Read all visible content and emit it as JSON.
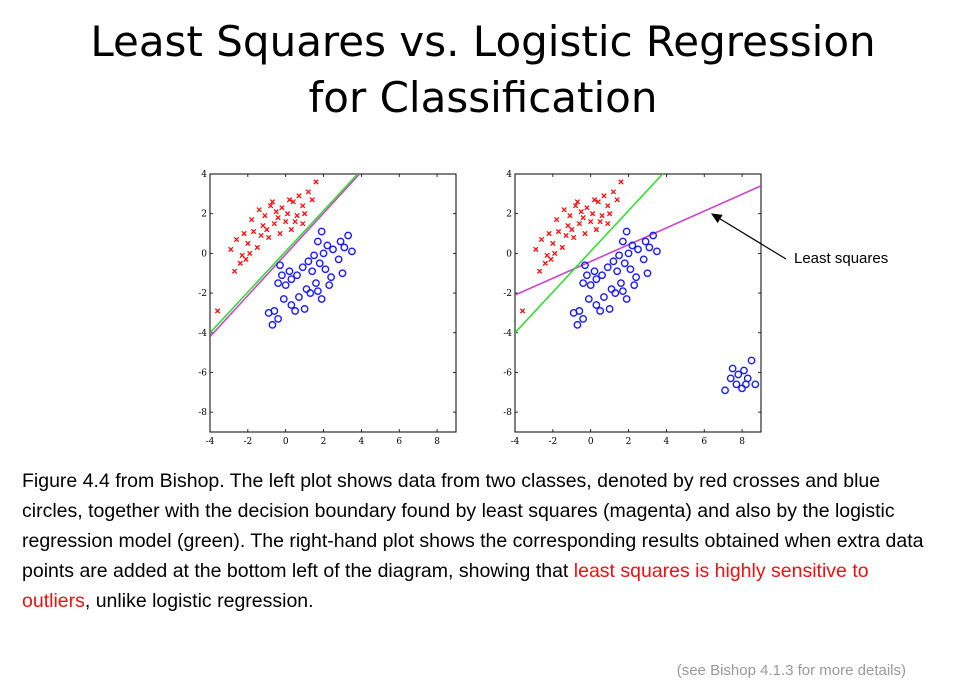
{
  "slide": {
    "title_line1": "Least Squares vs. Logistic Regression",
    "title_line2": "for Classification",
    "callout": "Least squares",
    "caption_part1": "Figure 4.4 from Bishop. The left plot shows data from two classes, denoted by red crosses and blue circles, together with the decision boundary found by least squares (magenta) and also by the logistic regression model (green). The right-hand plot shows the corresponding results obtained when extra data points are added at the bottom left of the diagram, showing that ",
    "caption_highlight": "least squares is highly sensitive to outliers",
    "caption_part2": ", unlike logistic regression.",
    "footnote": "(see Bishop 4.1.3 for more details)"
  },
  "colors": {
    "cross": "#ee1111",
    "circle": "#1a1aff",
    "least_squares": "#cc44cc",
    "logistic": "#33dd33",
    "highlight": "#ee1111"
  },
  "chart_data": [
    {
      "type": "scatter",
      "xlim": [
        -4,
        9
      ],
      "ylim": [
        -9,
        4
      ],
      "xticks": [
        -4,
        -2,
        0,
        2,
        4,
        6,
        8
      ],
      "yticks": [
        4,
        2,
        0,
        -2,
        -4,
        -6,
        -8
      ],
      "series": [
        {
          "marker": "cross",
          "points": [
            [
              -1.4,
              2.2
            ],
            [
              -1.1,
              1.9
            ],
            [
              -0.8,
              2.4
            ],
            [
              -0.5,
              2.1
            ],
            [
              -0.2,
              2.3
            ],
            [
              0.1,
              2.0
            ],
            [
              0.4,
              2.6
            ],
            [
              0.7,
              2.9
            ],
            [
              0.9,
              2.4
            ],
            [
              1.2,
              3.1
            ],
            [
              1.6,
              3.6
            ],
            [
              -2.9,
              0.2
            ],
            [
              -2.6,
              0.7
            ],
            [
              -2.3,
              -0.1
            ],
            [
              -2.0,
              0.5
            ],
            [
              -1.7,
              1.1
            ],
            [
              -1.5,
              0.3
            ],
            [
              -1.2,
              1.4
            ],
            [
              -0.9,
              0.8
            ],
            [
              -0.6,
              1.5
            ],
            [
              -0.3,
              1.0
            ],
            [
              0.0,
              1.6
            ],
            [
              0.3,
              1.2
            ],
            [
              0.6,
              1.9
            ],
            [
              0.9,
              1.5
            ],
            [
              -1.8,
              1.7
            ],
            [
              -1.3,
              0.9
            ],
            [
              -2.7,
              -0.9
            ],
            [
              -2.4,
              -0.5
            ],
            [
              -2.1,
              -0.3
            ],
            [
              -3.6,
              -2.9
            ],
            [
              -0.4,
              1.8
            ],
            [
              0.2,
              2.7
            ],
            [
              1.0,
              2.0
            ],
            [
              -1.0,
              1.2
            ],
            [
              -2.2,
              1.0
            ],
            [
              0.5,
              1.6
            ],
            [
              1.4,
              2.7
            ],
            [
              -0.7,
              2.6
            ],
            [
              -1.9,
              0.0
            ]
          ]
        },
        {
          "marker": "circle",
          "points": [
            [
              1.9,
              1.1
            ],
            [
              1.7,
              0.6
            ],
            [
              2.2,
              0.4
            ],
            [
              2.0,
              0.0
            ],
            [
              2.5,
              0.2
            ],
            [
              2.9,
              0.6
            ],
            [
              3.3,
              0.9
            ],
            [
              3.1,
              0.3
            ],
            [
              1.5,
              -0.1
            ],
            [
              1.2,
              -0.4
            ],
            [
              0.9,
              -0.7
            ],
            [
              1.4,
              -0.9
            ],
            [
              1.8,
              -0.5
            ],
            [
              2.1,
              -0.8
            ],
            [
              2.4,
              -1.2
            ],
            [
              1.6,
              -1.5
            ],
            [
              1.1,
              -1.8
            ],
            [
              0.6,
              -1.1
            ],
            [
              0.3,
              -1.3
            ],
            [
              0.0,
              -1.6
            ],
            [
              -0.2,
              -1.1
            ],
            [
              -0.4,
              -1.5
            ],
            [
              -0.1,
              -2.3
            ],
            [
              0.3,
              -2.6
            ],
            [
              0.7,
              -2.2
            ],
            [
              1.0,
              -2.8
            ],
            [
              -0.6,
              -2.9
            ],
            [
              -0.9,
              -3.0
            ],
            [
              -0.4,
              -3.3
            ],
            [
              -0.7,
              -3.6
            ],
            [
              1.3,
              -2.0
            ],
            [
              1.7,
              -1.9
            ],
            [
              2.8,
              -0.3
            ],
            [
              3.5,
              0.1
            ],
            [
              -0.3,
              -0.6
            ],
            [
              0.2,
              -0.9
            ],
            [
              1.9,
              -2.3
            ],
            [
              0.5,
              -2.9
            ],
            [
              2.3,
              -1.6
            ],
            [
              3.0,
              -1.0
            ]
          ]
        }
      ],
      "lines": [
        {
          "name": "least squares",
          "color_key": "least_squares",
          "from": [
            -4,
            -4.2
          ],
          "to": [
            3.9,
            4
          ]
        },
        {
          "name": "logistic regression",
          "color_key": "logistic",
          "from": [
            -4,
            -4.0
          ],
          "to": [
            3.8,
            4
          ]
        }
      ]
    },
    {
      "type": "scatter",
      "xlim": [
        -4,
        9
      ],
      "ylim": [
        -9,
        4
      ],
      "xticks": [
        -4,
        -2,
        0,
        2,
        4,
        6,
        8
      ],
      "yticks": [
        4,
        2,
        0,
        -2,
        -4,
        -6,
        -8
      ],
      "series": [
        {
          "marker": "cross",
          "points": [
            [
              -1.4,
              2.2
            ],
            [
              -1.1,
              1.9
            ],
            [
              -0.8,
              2.4
            ],
            [
              -0.5,
              2.1
            ],
            [
              -0.2,
              2.3
            ],
            [
              0.1,
              2.0
            ],
            [
              0.4,
              2.6
            ],
            [
              0.7,
              2.9
            ],
            [
              0.9,
              2.4
            ],
            [
              1.2,
              3.1
            ],
            [
              1.6,
              3.6
            ],
            [
              -2.9,
              0.2
            ],
            [
              -2.6,
              0.7
            ],
            [
              -2.3,
              -0.1
            ],
            [
              -2.0,
              0.5
            ],
            [
              -1.7,
              1.1
            ],
            [
              -1.5,
              0.3
            ],
            [
              -1.2,
              1.4
            ],
            [
              -0.9,
              0.8
            ],
            [
              -0.6,
              1.5
            ],
            [
              -0.3,
              1.0
            ],
            [
              0.0,
              1.6
            ],
            [
              0.3,
              1.2
            ],
            [
              0.6,
              1.9
            ],
            [
              0.9,
              1.5
            ],
            [
              -1.8,
              1.7
            ],
            [
              -1.3,
              0.9
            ],
            [
              -2.7,
              -0.9
            ],
            [
              -2.4,
              -0.5
            ],
            [
              -2.1,
              -0.3
            ],
            [
              -3.6,
              -2.9
            ],
            [
              -0.4,
              1.8
            ],
            [
              0.2,
              2.7
            ],
            [
              1.0,
              2.0
            ],
            [
              -1.0,
              1.2
            ],
            [
              -2.2,
              1.0
            ],
            [
              0.5,
              1.6
            ],
            [
              1.4,
              2.7
            ],
            [
              -0.7,
              2.6
            ],
            [
              -1.9,
              0.0
            ]
          ]
        },
        {
          "marker": "circle",
          "points": [
            [
              1.9,
              1.1
            ],
            [
              1.7,
              0.6
            ],
            [
              2.2,
              0.4
            ],
            [
              2.0,
              0.0
            ],
            [
              2.5,
              0.2
            ],
            [
              2.9,
              0.6
            ],
            [
              3.3,
              0.9
            ],
            [
              3.1,
              0.3
            ],
            [
              1.5,
              -0.1
            ],
            [
              1.2,
              -0.4
            ],
            [
              0.9,
              -0.7
            ],
            [
              1.4,
              -0.9
            ],
            [
              1.8,
              -0.5
            ],
            [
              2.1,
              -0.8
            ],
            [
              2.4,
              -1.2
            ],
            [
              1.6,
              -1.5
            ],
            [
              1.1,
              -1.8
            ],
            [
              0.6,
              -1.1
            ],
            [
              0.3,
              -1.3
            ],
            [
              0.0,
              -1.6
            ],
            [
              -0.2,
              -1.1
            ],
            [
              -0.4,
              -1.5
            ],
            [
              -0.1,
              -2.3
            ],
            [
              0.3,
              -2.6
            ],
            [
              0.7,
              -2.2
            ],
            [
              1.0,
              -2.8
            ],
            [
              -0.6,
              -2.9
            ],
            [
              -0.9,
              -3.0
            ],
            [
              -0.4,
              -3.3
            ],
            [
              -0.7,
              -3.6
            ],
            [
              1.3,
              -2.0
            ],
            [
              1.7,
              -1.9
            ],
            [
              2.8,
              -0.3
            ],
            [
              3.5,
              0.1
            ],
            [
              -0.3,
              -0.6
            ],
            [
              0.2,
              -0.9
            ],
            [
              1.9,
              -2.3
            ],
            [
              0.5,
              -2.9
            ],
            [
              2.3,
              -1.6
            ],
            [
              3.0,
              -1.0
            ],
            [
              7.5,
              -5.8
            ],
            [
              7.8,
              -6.1
            ],
            [
              8.1,
              -5.9
            ],
            [
              8.3,
              -6.3
            ],
            [
              7.7,
              -6.6
            ],
            [
              8.0,
              -6.8
            ],
            [
              7.4,
              -6.3
            ],
            [
              8.5,
              -5.4
            ],
            [
              8.7,
              -6.6
            ],
            [
              7.1,
              -6.9
            ],
            [
              8.2,
              -6.6
            ]
          ]
        }
      ],
      "lines": [
        {
          "name": "least squares",
          "color_key": "least_squares",
          "from": [
            -4,
            -2.1
          ],
          "to": [
            9,
            3.4
          ]
        },
        {
          "name": "logistic regression",
          "color_key": "logistic",
          "from": [
            -4,
            -4.0
          ],
          "to": [
            3.8,
            4
          ]
        }
      ]
    }
  ]
}
